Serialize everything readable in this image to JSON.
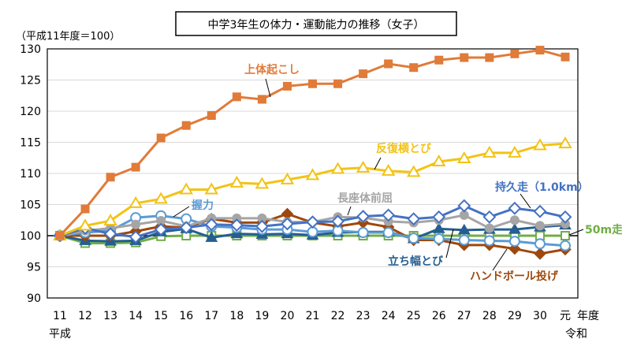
{
  "chart_data": {
    "type": "line",
    "title": "中学3年生の体力・運動能力の推移（女子）",
    "ylabel": "（平成11年度＝100）",
    "xlabel": "年度",
    "x": [
      "11",
      "12",
      "13",
      "14",
      "15",
      "16",
      "17",
      "18",
      "19",
      "20",
      "21",
      "22",
      "23",
      "24",
      "25",
      "26",
      "27",
      "28",
      "29",
      "30",
      "元"
    ],
    "era_labels": {
      "start": "平成",
      "end": "令和"
    },
    "ylim": [
      90,
      130
    ],
    "yticks": [
      90,
      95,
      100,
      105,
      110,
      115,
      120,
      125,
      130
    ],
    "grid": true,
    "legend": "none (direct labels)",
    "series": [
      {
        "name": "上体起こし",
        "color": "#E07B39",
        "marker": "square-filled",
        "values": [
          100,
          104.3,
          109.4,
          111,
          115.7,
          117.7,
          119.3,
          122.3,
          121.9,
          124,
          124.4,
          124.4,
          126,
          127.6,
          127,
          128.2,
          128.6,
          128.6,
          129.2,
          129.8,
          128.7
        ]
      },
      {
        "name": "反復横とび",
        "color": "#F2C314",
        "marker": "triangle-open",
        "values": [
          100,
          101.6,
          102.4,
          105.2,
          105.9,
          107.4,
          107.4,
          108.5,
          108.3,
          109,
          109.7,
          110.7,
          110.9,
          110.4,
          110.2,
          111.9,
          112.4,
          113.3,
          113.3,
          114.5,
          114.8
        ]
      },
      {
        "name": "長座体前屈",
        "color": "#A5A5A5",
        "marker": "circle-filled",
        "values": [
          100,
          100.8,
          101.2,
          101.8,
          102.4,
          101.5,
          102.8,
          102.8,
          102.8,
          102.2,
          102.2,
          103.0,
          102.9,
          102.3,
          102.1,
          102.5,
          103.3,
          101.2,
          102.5,
          101.6,
          101.9
        ]
      },
      {
        "name": "握力",
        "color": "#5B9BD5",
        "marker": "circle-open",
        "values": [
          100,
          100.5,
          100.8,
          102.9,
          103.2,
          102.7,
          101.5,
          101.3,
          101.0,
          101.0,
          100.6,
          100.8,
          100.5,
          100.5,
          99.6,
          99.5,
          99.3,
          99.2,
          99.1,
          98.7,
          98.4
        ]
      },
      {
        "name": "持久走（1.0km）",
        "color": "#4472C4",
        "marker": "diamond-open",
        "values": [
          100,
          101.2,
          100.3,
          99.8,
          101.0,
          101.3,
          101.8,
          101.7,
          101.5,
          101.9,
          102.2,
          102.3,
          103.1,
          103.3,
          102.7,
          103.0,
          104.8,
          103.0,
          104.4,
          103.9,
          103.0
        ]
      },
      {
        "name": "ハンドボール投げ",
        "color": "#9E480E",
        "marker": "diamond-filled",
        "values": [
          100,
          100,
          100,
          100.7,
          101.5,
          101.3,
          102.7,
          102.1,
          102.1,
          103.5,
          102.1,
          101.5,
          102.1,
          101.4,
          99.3,
          99.3,
          98.5,
          98.5,
          97.9,
          97.1,
          97.8
        ]
      },
      {
        "name": "立ち幅とび",
        "color": "#255E91",
        "marker": "triangle-filled",
        "values": [
          100,
          99.2,
          99.1,
          99.2,
          100.6,
          101.1,
          99.7,
          100.3,
          100.2,
          100.3,
          100.1,
          100.5,
          100.6,
          100.6,
          99.5,
          101.1,
          100.9,
          101.0,
          101.0,
          101.4,
          101.7
        ]
      },
      {
        "name": "50m走",
        "color": "#70AD47",
        "marker": "square-open",
        "values": [
          100,
          98.8,
          98.8,
          98.9,
          99.9,
          100,
          100,
          100,
          100,
          100,
          100,
          100,
          100,
          100,
          100,
          100,
          100,
          100,
          100,
          100,
          100
        ]
      }
    ]
  }
}
